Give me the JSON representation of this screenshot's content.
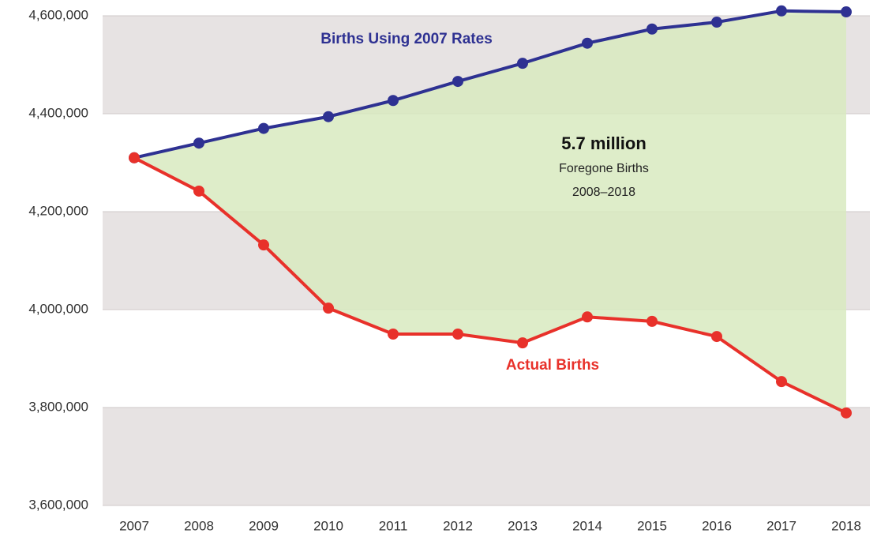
{
  "chart_data": {
    "type": "line",
    "categories": [
      "2007",
      "2008",
      "2009",
      "2010",
      "2011",
      "2012",
      "2013",
      "2014",
      "2015",
      "2016",
      "2017",
      "2018"
    ],
    "series": [
      {
        "name": "Births Using 2007 Rates",
        "color": "#2e3192",
        "values": [
          4310000,
          4340000,
          4370000,
          4394000,
          4427000,
          4466000,
          4503000,
          4544000,
          4573000,
          4587000,
          4610000,
          4608000
        ]
      },
      {
        "name": "Actual Births",
        "color": "#e8312a",
        "values": [
          4310000,
          4242000,
          4132000,
          4003000,
          3950000,
          3950000,
          3932000,
          3985000,
          3976000,
          3945000,
          3853000,
          3789000
        ]
      }
    ],
    "fill_between_color": "#d8eabf",
    "annotations": [
      "5.7 million",
      "Foregone Births",
      "2008–2018"
    ],
    "ylim": [
      3600000,
      4600000
    ],
    "yticks": [
      {
        "value": 3600000,
        "label": "3,600,000"
      },
      {
        "value": 3800000,
        "label": "3,800,000"
      },
      {
        "value": 4000000,
        "label": "4,000,000"
      },
      {
        "value": 4200000,
        "label": "4,200,000"
      },
      {
        "value": 4400000,
        "label": "4,400,000"
      },
      {
        "value": 4600000,
        "label": "4,600,000"
      }
    ],
    "grid": true
  }
}
